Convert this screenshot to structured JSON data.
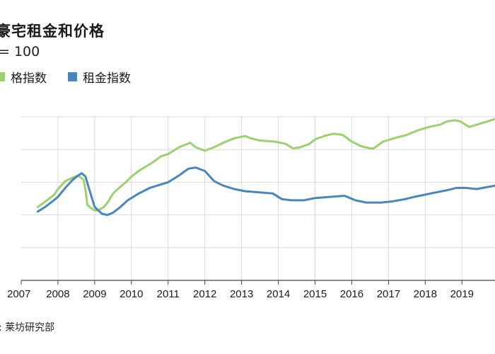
{
  "title": "豪宅租金和价格",
  "subtitle": "= 100",
  "source": ":  莱坊研究部",
  "colors": {
    "price": "#9bd16f",
    "rent": "#4a86bd",
    "grid": "#d9d9d9",
    "axis": "#444444"
  },
  "chart_data": {
    "type": "line",
    "title": "豪宅租金和价格",
    "ylabel": "",
    "xlabel": "",
    "xlim": [
      2007,
      2019.9
    ],
    "ylim": [
      25,
      170
    ],
    "x_ticks": [
      "2007",
      "2008",
      "2009",
      "2010",
      "2011",
      "2012",
      "2013",
      "2014",
      "2015",
      "2016",
      "2017",
      "2018",
      "2019"
    ],
    "grid": true,
    "legend": "top-left",
    "series": [
      {
        "name": "格指数",
        "color": "#9bd16f",
        "x": [
          2007.45,
          2007.7,
          2007.9,
          2008.0,
          2008.2,
          2008.4,
          2008.55,
          2008.7,
          2008.75,
          2008.8,
          2008.9,
          2009.0,
          2009.1,
          2009.25,
          2009.35,
          2009.5,
          2009.7,
          2009.85,
          2010.0,
          2010.2,
          2010.4,
          2010.6,
          2010.8,
          2011.0,
          2011.3,
          2011.6,
          2011.75,
          2012.0,
          2012.25,
          2012.5,
          2012.8,
          2013.1,
          2013.25,
          2013.5,
          2013.9,
          2014.2,
          2014.4,
          2014.6,
          2014.85,
          2015.0,
          2015.25,
          2015.5,
          2015.75,
          2016.0,
          2016.25,
          2016.5,
          2016.6,
          2016.85,
          2017.15,
          2017.5,
          2017.8,
          2018.1,
          2018.4,
          2018.6,
          2018.8,
          2018.95,
          2019.2,
          2019.5,
          2019.7,
          2019.9
        ],
        "values": [
          90,
          96,
          101,
          106,
          113,
          116,
          118,
          114,
          105,
          92,
          89,
          87,
          87,
          90,
          94,
          102,
          108,
          112,
          117,
          122,
          126,
          130,
          135,
          137,
          143,
          147,
          143,
          140,
          143,
          147,
          151,
          153,
          151,
          149,
          148,
          146,
          142,
          143,
          146,
          150,
          153,
          155,
          154,
          148,
          144,
          142,
          142,
          148,
          151,
          154,
          158,
          161,
          163,
          166,
          167,
          166,
          161,
          164,
          166,
          168
        ]
      },
      {
        "name": "租金指数",
        "color": "#4a86bd",
        "x": [
          2007.45,
          2007.65,
          2007.85,
          2008.0,
          2008.2,
          2008.4,
          2008.55,
          2008.65,
          2008.75,
          2008.85,
          2009.0,
          2009.2,
          2009.35,
          2009.5,
          2009.7,
          2009.9,
          2010.2,
          2010.5,
          2010.8,
          2011.0,
          2011.3,
          2011.55,
          2011.75,
          2012.0,
          2012.25,
          2012.5,
          2012.8,
          2013.1,
          2013.5,
          2013.85,
          2014.1,
          2014.35,
          2014.7,
          2015.0,
          2015.4,
          2015.8,
          2016.1,
          2016.4,
          2016.8,
          2017.1,
          2017.45,
          2017.7,
          2018.0,
          2018.3,
          2018.6,
          2018.85,
          2019.1,
          2019.4,
          2019.9
        ],
        "values": [
          86,
          90,
          95,
          99,
          107,
          114,
          118,
          120,
          117,
          106,
          90,
          84,
          83,
          85,
          90,
          96,
          102,
          107,
          110,
          112,
          118,
          124,
          125,
          122,
          113,
          109,
          106,
          104,
          103,
          102,
          97,
          96,
          96,
          98,
          99,
          100,
          96,
          94,
          94,
          95,
          97,
          99,
          101,
          103,
          105,
          107,
          107,
          106,
          109
        ]
      }
    ]
  }
}
